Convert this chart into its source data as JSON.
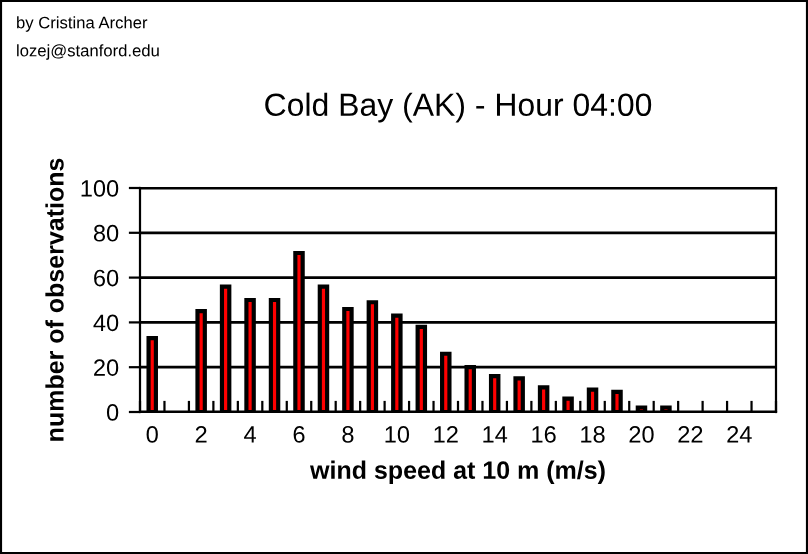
{
  "chart_data": {
    "type": "bar",
    "title": "Cold Bay (AK) - Hour 04:00",
    "xlabel": "wind speed at 10 m (m/s)",
    "ylabel": "number of observations",
    "annotations": [
      "by Cristina Archer",
      "lozej@stanford.edu"
    ],
    "categories": [
      "0",
      null,
      "2",
      null,
      "4",
      null,
      "6",
      null,
      "8",
      null,
      "10",
      null,
      "12",
      null,
      "14",
      null,
      "16",
      null,
      "18",
      null,
      "20",
      null,
      "22",
      null,
      "24",
      null
    ],
    "values": [
      33,
      null,
      45,
      56,
      50,
      50,
      71,
      56,
      46,
      49,
      43,
      38,
      26,
      20,
      16,
      15,
      11,
      6,
      10,
      9,
      2,
      2,
      null,
      null,
      null,
      null
    ],
    "color": "#ff0000",
    "ylim": [
      0,
      100
    ],
    "yticks": [
      0,
      20,
      40,
      60,
      80,
      100
    ],
    "grid": "y",
    "legend": false
  }
}
